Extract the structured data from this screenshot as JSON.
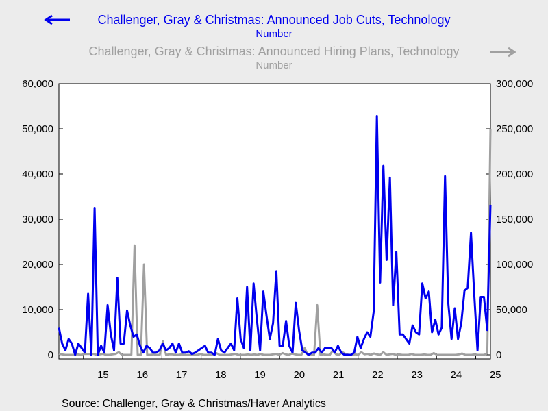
{
  "chart_data": {
    "type": "line",
    "x_ticks": [
      "15",
      "16",
      "17",
      "18",
      "19",
      "20",
      "21",
      "22",
      "23",
      "24",
      "25"
    ],
    "ylim_left": [
      0,
      60000
    ],
    "ylim_right": [
      0,
      300000
    ],
    "yticks_left": [
      "0",
      "10,000",
      "20,000",
      "30,000",
      "40,000",
      "50,000",
      "60,000"
    ],
    "yticks_right": [
      "0",
      "50,000",
      "100,000",
      "150,000",
      "200,000",
      "250,000",
      "300,000"
    ],
    "xlim": [
      2014.375,
      2025.375
    ],
    "colors": {
      "cuts": "#0000ee",
      "hiring": "#a0a0a0"
    },
    "source": "Source:  Challenger, Gray & Christmas/Haver Analytics",
    "series": [
      {
        "name": "Challenger, Gray & Christmas: Announced Job Cuts, Technology",
        "unit": "Number",
        "axis": "left",
        "values": [
          6000,
          2500,
          1000,
          3500,
          2500,
          0,
          2500,
          1500,
          500,
          13500,
          0,
          32500,
          0,
          2000,
          500,
          11000,
          4500,
          1000,
          17000,
          2500,
          2500,
          9800,
          6500,
          4000,
          4500,
          2000,
          500,
          2000,
          1500,
          500,
          500,
          1000,
          2500,
          1000,
          1500,
          2500,
          500,
          2500,
          500,
          500,
          800,
          200,
          500,
          1000,
          1500,
          2000,
          500,
          500,
          0,
          3500,
          1000,
          500,
          1500,
          2500,
          1000,
          12500,
          3500,
          1500,
          15000,
          1000,
          15800,
          8000,
          1000,
          14000,
          8500,
          3500,
          7000,
          18500,
          2000,
          2000,
          7500,
          2000,
          500,
          11500,
          5500,
          1000,
          500,
          0,
          500,
          500,
          1500,
          500,
          1500,
          1500,
          1500,
          500,
          2000,
          500,
          0,
          0,
          0,
          500,
          4000,
          1500,
          3500,
          5000,
          4000,
          9500,
          52800,
          16000,
          41800,
          21000,
          39200,
          11000,
          22800,
          4500,
          4500,
          3500,
          2500,
          6500,
          5000,
          4500,
          15800,
          12500,
          14000,
          5000,
          7800,
          4500,
          6000,
          39500,
          11500,
          3500,
          10300,
          3500,
          7000,
          14200,
          14800,
          27000,
          13500,
          1000,
          12800,
          12800,
          5500,
          33200
        ]
      },
      {
        "name": "Challenger, Gray & Christmas: Announced Hiring Plans, Technology",
        "unit": "Number",
        "axis": "right",
        "values": [
          1000,
          500,
          0,
          0,
          0,
          0,
          500,
          0,
          1000,
          1000,
          1000,
          1000,
          0,
          500,
          1000,
          0,
          0,
          500,
          1000,
          3000,
          0,
          0,
          0,
          0,
          121000,
          0,
          0,
          100000,
          0,
          0,
          500,
          0,
          0,
          15000,
          0,
          500,
          500,
          0,
          0,
          500,
          0,
          0,
          0,
          0,
          0,
          1000,
          0,
          0,
          0,
          0,
          2000,
          0,
          0,
          0,
          0,
          500,
          1000,
          0,
          0,
          0,
          500,
          0,
          500,
          0,
          1000,
          0,
          0,
          0,
          500,
          1000,
          0,
          2000,
          500,
          0,
          1500,
          500,
          0,
          0,
          7500,
          0,
          0,
          0,
          55000,
          0,
          500,
          0,
          0,
          5000,
          500,
          0,
          3000,
          1000,
          0,
          0,
          500,
          0,
          3000,
          500,
          1000,
          0,
          1500,
          500,
          0,
          3000,
          0,
          500,
          1000,
          0,
          500,
          0,
          0,
          0,
          1000,
          0,
          0,
          0,
          500,
          0,
          0,
          2000,
          0,
          0,
          0,
          0,
          0,
          0,
          0,
          500,
          1500,
          0,
          0,
          0,
          500,
          0,
          0,
          0,
          1500,
          250000
        ]
      }
    ]
  }
}
